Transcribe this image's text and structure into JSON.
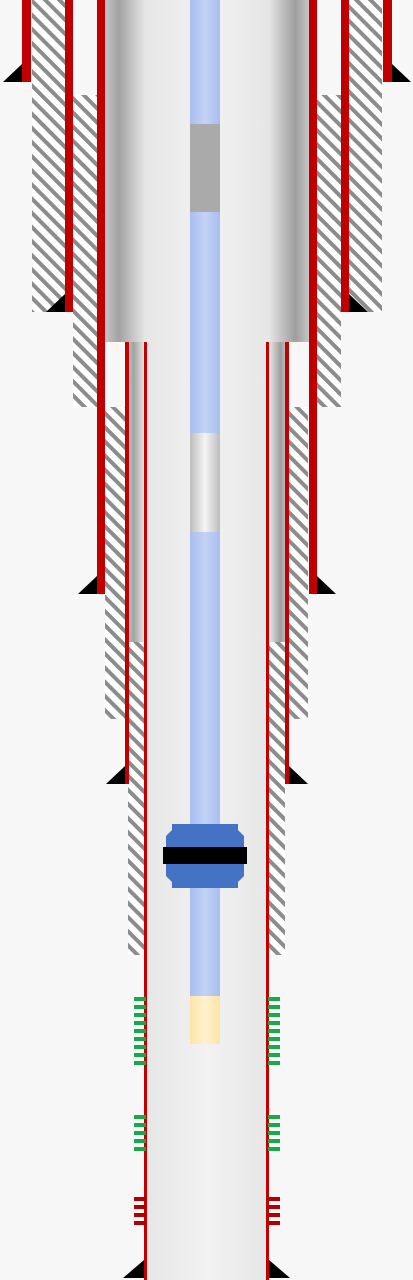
{
  "diagram": {
    "kind": "wellbore-schematic",
    "colors": {
      "background": "#f7f7f7",
      "casing": "#c00000",
      "cement_hatch": "#8c8c8c",
      "tubing": "#b4c6f0",
      "packer_rubber": "#4472c4",
      "packer_band": "#000000",
      "shoe": "#000000",
      "perforation_green": "#1aa84a",
      "perforation_red": "#b00000",
      "plug": "#ffe9b5"
    },
    "casing_strings": [
      {
        "name": "surface-casing"
      },
      {
        "name": "intermediate-casing"
      },
      {
        "name": "production-casing"
      },
      {
        "name": "production-liner"
      }
    ],
    "tubing_components": [
      {
        "name": "tubing-joint-upper"
      },
      {
        "name": "tubing-sub-gray"
      },
      {
        "name": "tubing-joint-middle"
      },
      {
        "name": "tubing-sub-silver"
      },
      {
        "name": "tubing-joint-lower"
      },
      {
        "name": "packer"
      },
      {
        "name": "tubing-tail"
      },
      {
        "name": "bottom-plug"
      }
    ],
    "perforation_zones": [
      {
        "name": "perforation-zone-1",
        "color": "green",
        "shots": 9
      },
      {
        "name": "perforation-zone-2",
        "color": "green",
        "shots": 5
      },
      {
        "name": "perforation-zone-3",
        "color": "red",
        "shots": 4
      }
    ]
  }
}
